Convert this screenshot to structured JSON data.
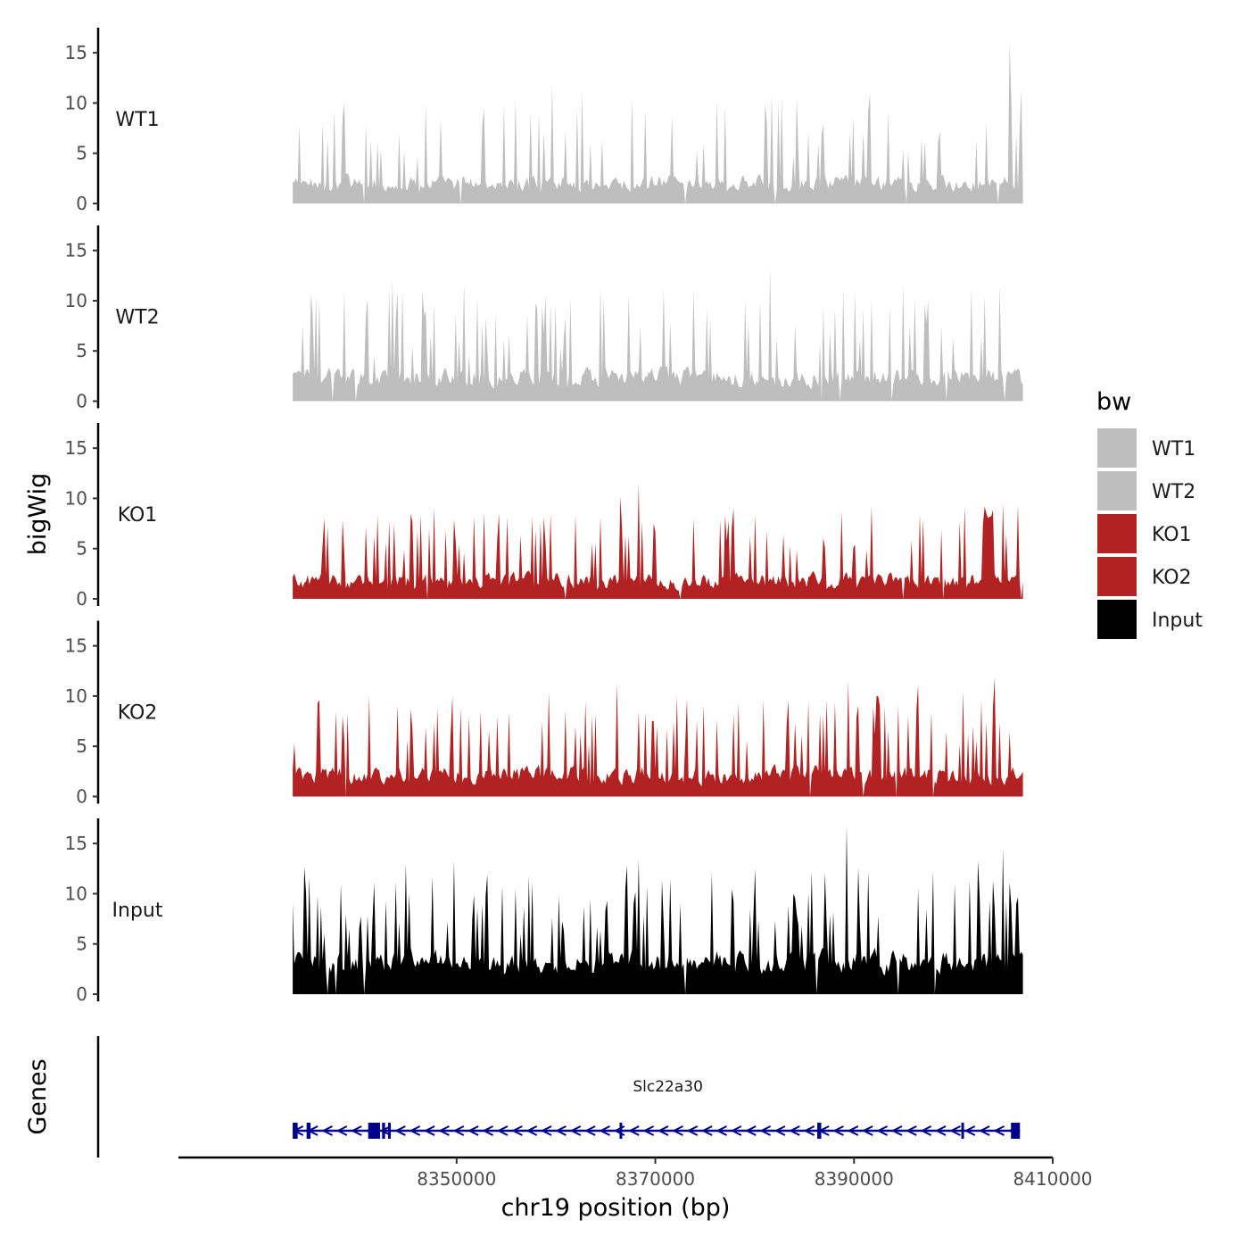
{
  "chart_data": {
    "type": "area",
    "title": "",
    "chromosome": "chr19",
    "xlabel": "chr19 position (bp)",
    "ylabel": "bigWig",
    "genes_track_label": "Genes",
    "xlim": [
      8322000,
      8410000
    ],
    "data_range": [
      8333500,
      8407000
    ],
    "x_ticks": [
      8350000,
      8370000,
      8390000,
      8410000
    ],
    "x_tick_labels": [
      "8350000",
      "8370000",
      "8390000",
      "8410000"
    ],
    "ylim": [
      0,
      17.5
    ],
    "y_ticks": [
      0,
      5,
      10,
      15
    ],
    "y_tick_labels": [
      "0",
      "5",
      "10",
      "15"
    ],
    "legend": {
      "title": "bw",
      "position": "right",
      "entries": [
        {
          "label": "WT1",
          "color": "#bebebe"
        },
        {
          "label": "WT2",
          "color": "#bebebe"
        },
        {
          "label": "KO1",
          "color": "#b22222"
        },
        {
          "label": "KO2",
          "color": "#b22222"
        },
        {
          "label": "Input",
          "color": "#000000"
        }
      ]
    },
    "series": [
      {
        "name": "WT1",
        "color": "#bebebe",
        "bins": 440,
        "baseline_range": [
          0.8,
          3.2
        ],
        "peak_probability": 0.14,
        "peak_range": [
          3,
          9
        ],
        "landmark_peaks": [
          {
            "x": 8336500,
            "y": 8.0
          },
          {
            "x": 8352700,
            "y": 9.5
          },
          {
            "x": 8354700,
            "y": 9.8
          },
          {
            "x": 8362200,
            "y": 9.5
          },
          {
            "x": 8369000,
            "y": 9.3
          },
          {
            "x": 8381000,
            "y": 10.0
          },
          {
            "x": 8381800,
            "y": 10.8
          },
          {
            "x": 8382800,
            "y": 10.5
          },
          {
            "x": 8391500,
            "y": 9.2
          },
          {
            "x": 8402300,
            "y": 6.3
          },
          {
            "x": 8405700,
            "y": 16.0
          }
        ],
        "dips": [
          8340700,
          8350400,
          8373000,
          8382000,
          8395200,
          8404500
        ]
      },
      {
        "name": "WT2",
        "color": "#bebebe",
        "bins": 440,
        "baseline_range": [
          1.0,
          3.8
        ],
        "peak_probability": 0.16,
        "peak_range": [
          3,
          9
        ],
        "landmark_peaks": [
          {
            "x": 8334500,
            "y": 7.5
          },
          {
            "x": 8336200,
            "y": 10.0
          },
          {
            "x": 8344500,
            "y": 11.0
          },
          {
            "x": 8346700,
            "y": 8.5
          },
          {
            "x": 8358000,
            "y": 9.8
          },
          {
            "x": 8360000,
            "y": 9.5
          },
          {
            "x": 8375200,
            "y": 9.2
          },
          {
            "x": 8379000,
            "y": 10.0
          },
          {
            "x": 8381500,
            "y": 13.3
          },
          {
            "x": 8388900,
            "y": 11.0
          },
          {
            "x": 8391700,
            "y": 10.0
          },
          {
            "x": 8396200,
            "y": 10.2
          },
          {
            "x": 8401800,
            "y": 11.2
          },
          {
            "x": 8403200,
            "y": 10.6
          }
        ],
        "dips": [
          8337600,
          8339800,
          8386800,
          8388500,
          8393800,
          8399300,
          8405200
        ]
      },
      {
        "name": "KO1",
        "color": "#b22222",
        "bins": 440,
        "baseline_range": [
          0.6,
          3.0
        ],
        "peak_probability": 0.16,
        "peak_range": [
          3,
          7.5
        ],
        "landmark_peaks": [
          {
            "x": 8343700,
            "y": 7.5
          },
          {
            "x": 8347200,
            "y": 7.0
          },
          {
            "x": 8351800,
            "y": 8.2
          },
          {
            "x": 8354300,
            "y": 8.5
          },
          {
            "x": 8362000,
            "y": 8.3
          },
          {
            "x": 8366500,
            "y": 10.2
          },
          {
            "x": 8368400,
            "y": 11.5
          },
          {
            "x": 8388700,
            "y": 8.7
          },
          {
            "x": 8391700,
            "y": 9.2
          },
          {
            "x": 8401200,
            "y": 9.2
          },
          {
            "x": 8403300,
            "y": 8.5
          }
        ],
        "dips": [
          8347000,
          8361000,
          8372500,
          8395000,
          8399000,
          8406800
        ]
      },
      {
        "name": "KO2",
        "color": "#b22222",
        "bins": 440,
        "baseline_range": [
          0.8,
          3.5
        ],
        "peak_probability": 0.17,
        "peak_range": [
          3,
          8
        ],
        "landmark_peaks": [
          {
            "x": 8338500,
            "y": 8.0
          },
          {
            "x": 8341200,
            "y": 10.0
          },
          {
            "x": 8349500,
            "y": 10.0
          },
          {
            "x": 8363000,
            "y": 9.5
          },
          {
            "x": 8366200,
            "y": 11.3
          },
          {
            "x": 8388000,
            "y": 9.4
          },
          {
            "x": 8389400,
            "y": 11.5
          },
          {
            "x": 8392300,
            "y": 10.0
          },
          {
            "x": 8396500,
            "y": 11.1
          },
          {
            "x": 8401000,
            "y": 10.5
          },
          {
            "x": 8402800,
            "y": 9.5
          },
          {
            "x": 8404200,
            "y": 11.8
          }
        ],
        "dips": [
          8338800,
          8385600,
          8391000,
          8394300,
          8398000
        ]
      },
      {
        "name": "Input",
        "color": "#000000",
        "bins": 440,
        "baseline_range": [
          1.5,
          5.0
        ],
        "peak_probability": 0.2,
        "peak_range": [
          3,
          9
        ],
        "landmark_peaks": [
          {
            "x": 8336000,
            "y": 9.8
          },
          {
            "x": 8345200,
            "y": 10.0
          },
          {
            "x": 8349700,
            "y": 13.3
          },
          {
            "x": 8356000,
            "y": 10.5
          },
          {
            "x": 8360300,
            "y": 9.8
          },
          {
            "x": 8363400,
            "y": 9.5
          },
          {
            "x": 8367100,
            "y": 12.8
          },
          {
            "x": 8371500,
            "y": 11.5
          },
          {
            "x": 8380000,
            "y": 12.5
          },
          {
            "x": 8389300,
            "y": 16.8
          },
          {
            "x": 8396500,
            "y": 10.5
          },
          {
            "x": 8400200,
            "y": 11.0
          },
          {
            "x": 8402500,
            "y": 13.3
          },
          {
            "x": 8405000,
            "y": 14.5
          }
        ],
        "dips": [
          8337000,
          8337800,
          8340700,
          8373000,
          8386200,
          8394500,
          8398100
        ]
      }
    ],
    "genes": [
      {
        "name": "Slc22a30",
        "start": 8333500,
        "end": 8406700,
        "strand": "-",
        "color": "#00008b",
        "exons": [
          {
            "start": 8333500,
            "end": 8334000
          },
          {
            "start": 8334900,
            "end": 8335300
          },
          {
            "start": 8341100,
            "end": 8342300
          },
          {
            "start": 8342500,
            "end": 8342800
          },
          {
            "start": 8343100,
            "end": 8343300
          },
          {
            "start": 8366400,
            "end": 8366600
          },
          {
            "start": 8386300,
            "end": 8386700
          },
          {
            "start": 8400800,
            "end": 8401000
          },
          {
            "start": 8405800,
            "end": 8406700
          }
        ]
      }
    ]
  }
}
